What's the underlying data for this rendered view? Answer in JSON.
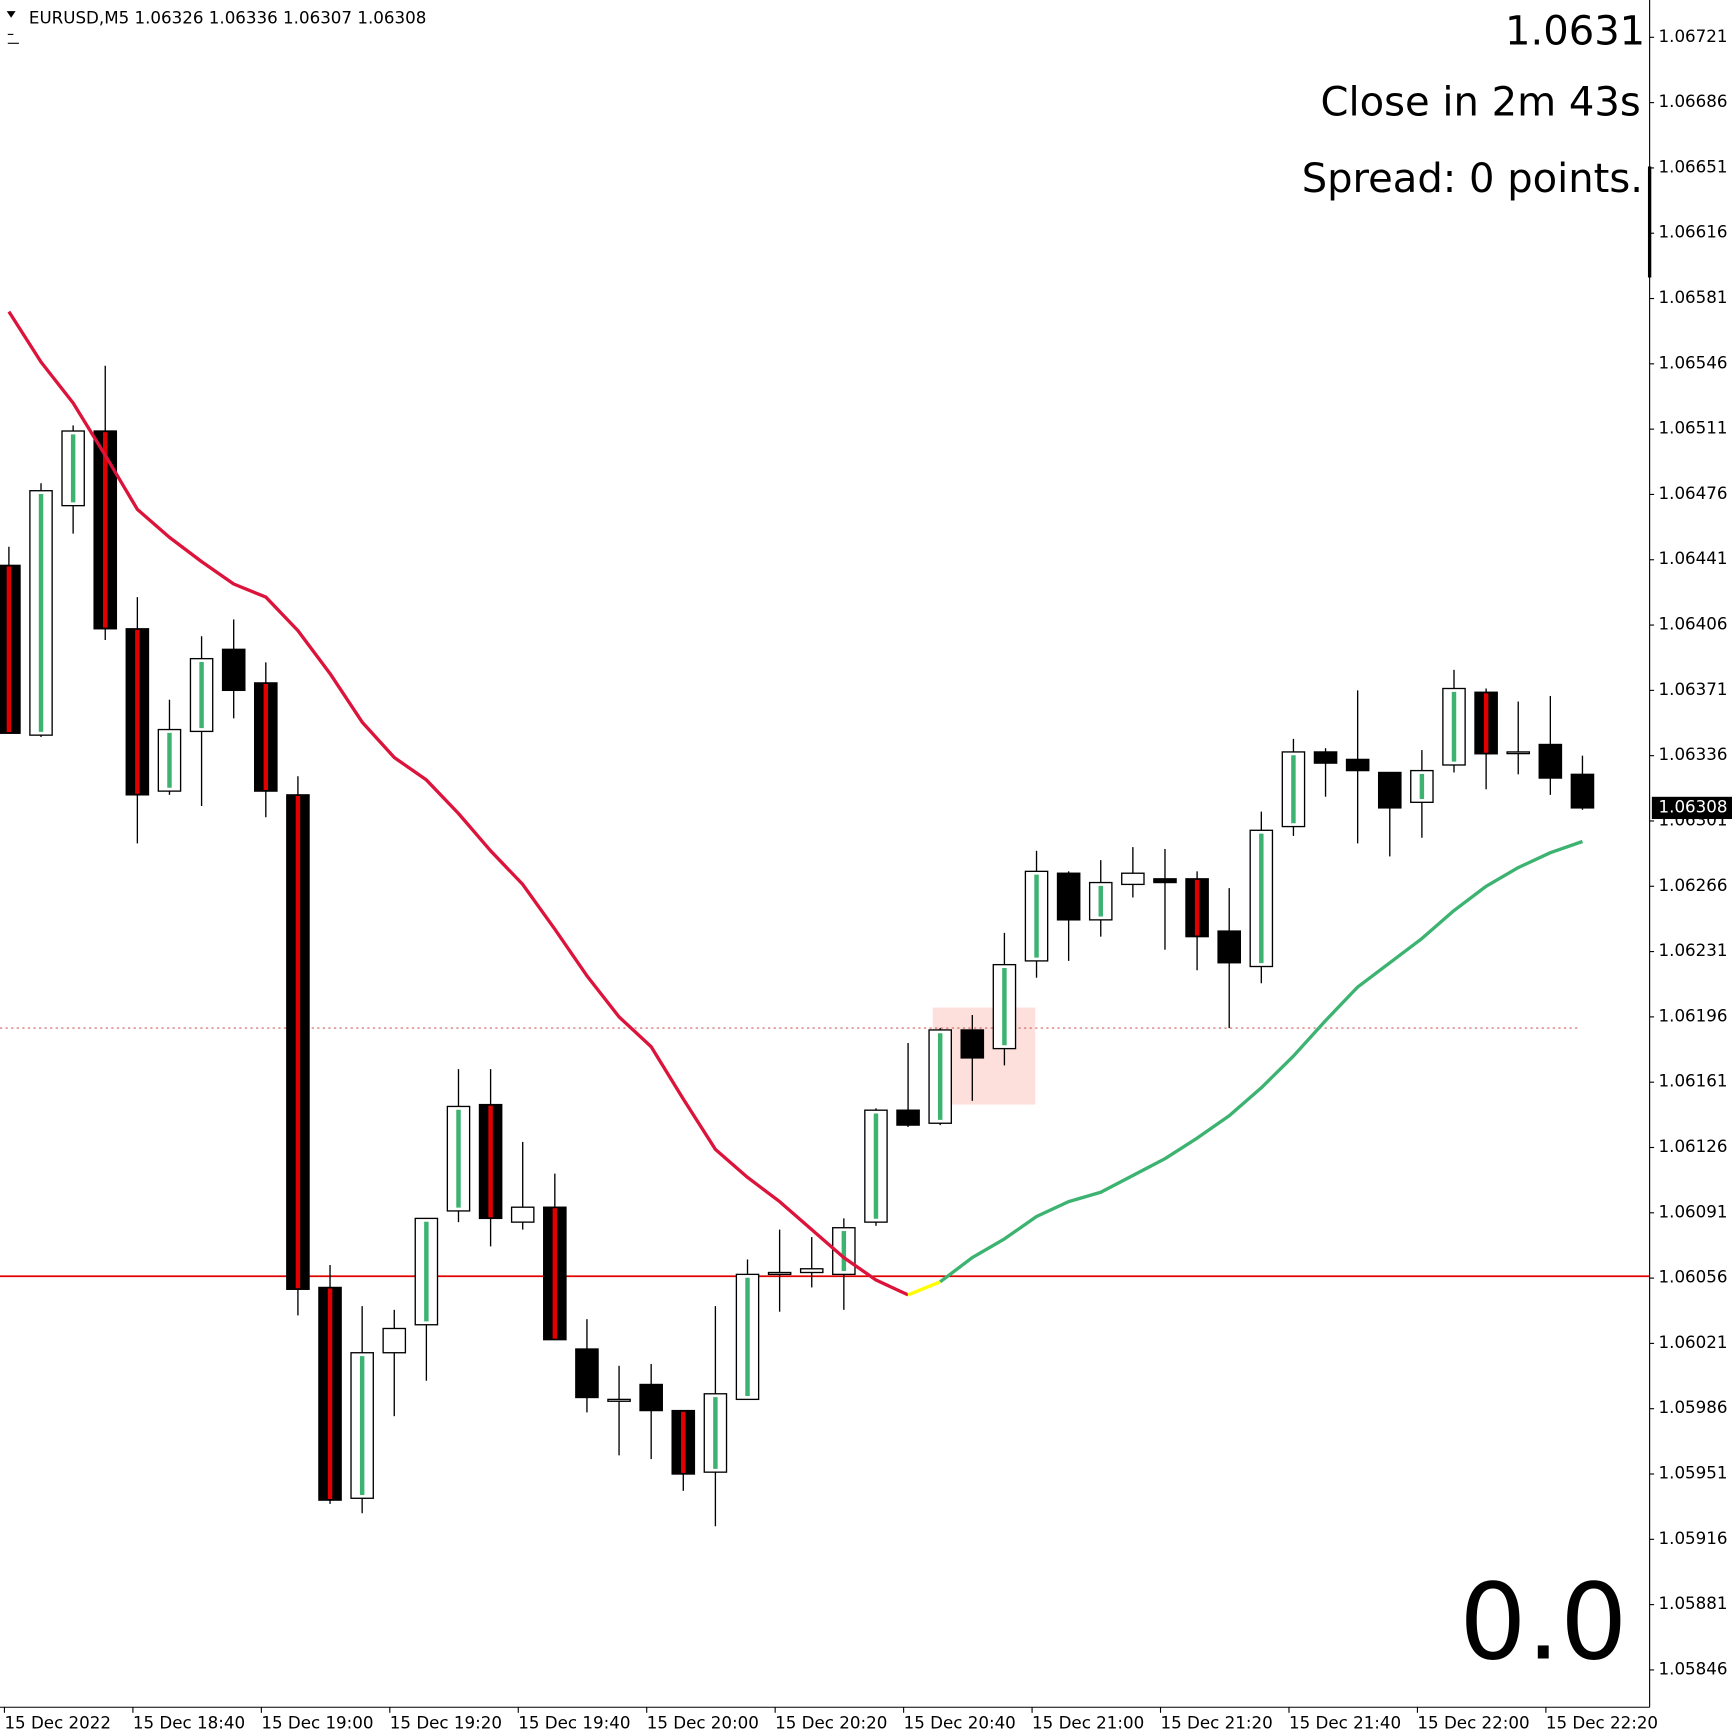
{
  "chart_data": {
    "type": "candlestick",
    "title": "EURUSD,M5  1.06326 1.06336 1.06307 1.06308",
    "categories": [
      "15 Dec 2022",
      null,
      null,
      null,
      "15 Dec 18:40",
      null,
      null,
      null,
      "15 Dec 19:00",
      null,
      null,
      null,
      "15 Dec 19:20",
      null,
      null,
      null,
      "15 Dec 19:40",
      null,
      null,
      null,
      "15 Dec 20:00",
      null,
      null,
      null,
      "15 Dec 20:20",
      null,
      null,
      null,
      "15 Dec 20:40",
      null,
      null,
      null,
      "15 Dec 21:00",
      null,
      null,
      null,
      "15 Dec 21:20",
      null,
      null,
      null,
      "15 Dec 21:40",
      null,
      null,
      null,
      "15 Dec 22:00",
      null,
      null,
      null,
      "15 Dec 22:20",
      null
    ],
    "open": [
      1.06438,
      1.06347,
      1.0647,
      1.0651,
      1.06404,
      1.06317,
      1.06349,
      1.06393,
      1.06375,
      1.06315,
      1.06051,
      1.05938,
      1.06016,
      1.06031,
      1.06092,
      1.06149,
      1.06086,
      1.06094,
      1.06018,
      1.0599,
      1.05999,
      1.05985,
      1.05952,
      1.05991,
      1.06058,
      1.06059,
      1.06058,
      1.06086,
      1.06146,
      1.06139,
      1.06189,
      1.06179,
      1.06226,
      1.06273,
      1.06248,
      1.06267,
      1.0627,
      1.0627,
      1.06242,
      1.06223,
      1.06298,
      1.06338,
      1.06334,
      1.06327,
      1.06311,
      1.06331,
      1.0637,
      1.06338,
      1.06342,
      1.06326
    ],
    "high": [
      1.06448,
      1.06482,
      1.06513,
      1.06545,
      1.06421,
      1.06366,
      1.064,
      1.06409,
      1.06386,
      1.06325,
      1.06063,
      1.06041,
      1.06039,
      1.06088,
      1.06168,
      1.06168,
      1.06129,
      1.06112,
      1.06034,
      1.06009,
      1.0601,
      1.05985,
      1.06041,
      1.06066,
      1.06082,
      1.06078,
      1.06088,
      1.06147,
      1.06182,
      1.0619,
      1.06197,
      1.06241,
      1.06285,
      1.06274,
      1.0628,
      1.06287,
      1.06286,
      1.06274,
      1.06265,
      1.06306,
      1.06345,
      1.0634,
      1.06371,
      1.06327,
      1.06339,
      1.06382,
      1.06372,
      1.06365,
      1.06368,
      1.06336
    ],
    "low": [
      1.06348,
      1.06346,
      1.06455,
      1.06398,
      1.06289,
      1.06315,
      1.06309,
      1.06356,
      1.06303,
      1.06036,
      1.05935,
      1.0593,
      1.05982,
      1.06001,
      1.06086,
      1.06073,
      1.06082,
      1.06023,
      1.05984,
      1.05961,
      1.05959,
      1.05942,
      1.05923,
      1.05991,
      1.06038,
      1.06051,
      1.06039,
      1.06084,
      1.06137,
      1.06138,
      1.06151,
      1.0617,
      1.06217,
      1.06226,
      1.06239,
      1.0626,
      1.06232,
      1.06221,
      1.0619,
      1.06214,
      1.06293,
      1.06314,
      1.06289,
      1.06282,
      1.06292,
      1.06327,
      1.06318,
      1.06326,
      1.06315,
      1.06307
    ],
    "close": [
      1.06348,
      1.06478,
      1.0651,
      1.06404,
      1.06315,
      1.0635,
      1.06388,
      1.06371,
      1.06317,
      1.0605,
      1.05937,
      1.06016,
      1.06029,
      1.06088,
      1.06148,
      1.06088,
      1.06094,
      1.06023,
      1.05992,
      1.05991,
      1.05985,
      1.05951,
      1.05994,
      1.06058,
      1.06059,
      1.06061,
      1.06083,
      1.06146,
      1.06138,
      1.06189,
      1.06174,
      1.06224,
      1.06274,
      1.06248,
      1.06268,
      1.06273,
      1.06268,
      1.06239,
      1.06225,
      1.06296,
      1.06338,
      1.06332,
      1.06328,
      1.06308,
      1.06328,
      1.06372,
      1.06337,
      1.06338,
      1.06324,
      1.06308
    ],
    "bull_color": "#ffffff",
    "bear_color": "#000000",
    "lines": [
      {
        "color": "#dc143c",
        "values": [
          1.06574,
          1.06547,
          1.06525,
          1.06497,
          1.06468,
          1.06453,
          1.0644,
          1.06428,
          1.06421,
          1.06403,
          1.0638,
          1.06354,
          1.06335,
          1.06323,
          1.06305,
          1.06285,
          1.06267,
          1.06243,
          1.06218,
          1.06196,
          1.0618,
          1.06152,
          1.06125,
          1.0611,
          1.06097,
          1.06082,
          1.06067,
          1.06055,
          1.06047,
          null,
          null,
          null,
          null,
          null,
          null,
          null,
          null,
          null,
          null,
          null,
          null,
          null,
          null,
          null,
          null,
          null,
          null,
          null,
          null,
          null
        ]
      },
      {
        "color": "#ffff00",
        "values": [
          null,
          null,
          null,
          null,
          null,
          null,
          null,
          null,
          null,
          null,
          null,
          null,
          null,
          null,
          null,
          null,
          null,
          null,
          null,
          null,
          null,
          null,
          null,
          null,
          null,
          null,
          null,
          null,
          1.06047,
          1.06054,
          null,
          null,
          null,
          null,
          null,
          null,
          null,
          null,
          null,
          null,
          null,
          null,
          null,
          null,
          null,
          null,
          null,
          null,
          null,
          null
        ]
      },
      {
        "color": "#3cb371",
        "values": [
          null,
          null,
          null,
          null,
          null,
          null,
          null,
          null,
          null,
          null,
          null,
          null,
          null,
          null,
          null,
          null,
          null,
          null,
          null,
          null,
          null,
          null,
          null,
          null,
          null,
          null,
          null,
          null,
          null,
          1.06054,
          1.06067,
          1.06077,
          1.06089,
          1.06097,
          1.06102,
          1.06111,
          1.0612,
          1.06131,
          1.06143,
          1.06158,
          1.06175,
          1.06194,
          1.06212,
          1.06225,
          1.06238,
          1.06253,
          1.06266,
          1.06276,
          1.06284,
          1.0629
        ]
      }
    ],
    "hlines": [
      {
        "value": 1.06057,
        "color": "#e00000",
        "style": "solid"
      },
      {
        "value": 1.0619,
        "color": "#d06060",
        "style": "dotted"
      }
    ],
    "zone": {
      "range": [
        1.06149,
        1.06201
      ],
      "color": "#fde0dc"
    },
    "last_price": 1.06308,
    "ylim": [
      1.05826,
      1.06741
    ],
    "yticks": [
      1.06721,
      1.06686,
      1.06651,
      1.06616,
      1.06581,
      1.06546,
      1.06511,
      1.06476,
      1.06441,
      1.06406,
      1.06371,
      1.06336,
      1.06301,
      1.06266,
      1.06231,
      1.06196,
      1.06161,
      1.06126,
      1.06091,
      1.06056,
      1.06021,
      1.05986,
      1.05951,
      1.05916,
      1.05881,
      1.05846
    ],
    "overlay": {
      "price": "1.0631",
      "countdown": "Close in 2m 43s",
      "spread": "Spread: 0 points.",
      "counter": "0.0",
      "counter_color": "#32cd32"
    }
  }
}
